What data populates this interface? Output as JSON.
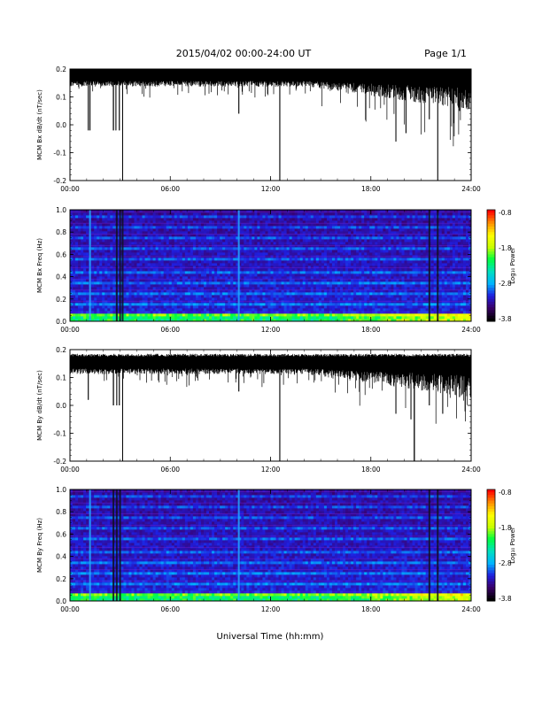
{
  "header": {
    "title": "2015/04/02  00:00-24:00 UT",
    "page": "Page 1/1"
  },
  "x_axis": {
    "label": "Universal Time (hh:mm)",
    "ticks": [
      "00:00",
      "06:00",
      "12:00",
      "18:00",
      "24:00"
    ]
  },
  "colors": {
    "trace": "#000000",
    "colorbar_stops": [
      "#000000",
      "#3a006a",
      "#1f1fe0",
      "#00b4ff",
      "#00e0c0",
      "#00ff40",
      "#c8ff00",
      "#ffff00",
      "#ff9000",
      "#ff0000"
    ]
  },
  "chart_data": [
    {
      "type": "line",
      "ylabel": "MCM Bx dB/dt (nT/sec)",
      "xlim": [
        0,
        24
      ],
      "ylim": [
        -0.2,
        0.2
      ],
      "yticks": [
        "0.2",
        "0.1",
        "0.0",
        "-0.1",
        "-0.2"
      ],
      "grid": false,
      "baseline": 0.165,
      "spikes": [
        {
          "x": 1.1,
          "y": -0.02
        },
        {
          "x": 1.2,
          "y": -0.02
        },
        {
          "x": 2.6,
          "y": -0.02
        },
        {
          "x": 2.75,
          "y": -0.02
        },
        {
          "x": 2.95,
          "y": -0.02
        },
        {
          "x": 3.15,
          "y": -0.2
        },
        {
          "x": 10.1,
          "y": 0.04
        },
        {
          "x": 12.55,
          "y": -0.2
        },
        {
          "x": 19.5,
          "y": -0.06
        },
        {
          "x": 20.1,
          "y": -0.03
        },
        {
          "x": 21.5,
          "y": 0.02
        },
        {
          "x": 22.0,
          "y": -0.2
        },
        {
          "x": 23.3,
          "y": 0.05
        }
      ]
    },
    {
      "type": "heatmap",
      "ylabel": "MCM Bx Freq (Hz)",
      "xlim": [
        0,
        24
      ],
      "ylim": [
        0,
        1.0
      ],
      "yticks": [
        "1.0",
        "0.8",
        "0.6",
        "0.4",
        "0.2",
        "0.0"
      ],
      "colorbar": {
        "label": "Log₁₀ Power",
        "ticks": [
          "-0.8",
          "-1.8",
          "-2.8",
          "-3.8"
        ]
      },
      "vertical_streaks": [
        1.2,
        2.8,
        3.0,
        3.15,
        10.1,
        21.5,
        22.0
      ]
    },
    {
      "type": "line",
      "ylabel": "MCM By dB/dt (nT/sec)",
      "xlim": [
        0,
        24
      ],
      "ylim": [
        -0.2,
        0.2
      ],
      "yticks": [
        "0.2",
        "0.1",
        "0.0",
        "-0.1",
        "-0.2"
      ],
      "grid": false,
      "baseline": 0.14,
      "spikes": [
        {
          "x": 1.1,
          "y": 0.02
        },
        {
          "x": 2.6,
          "y": 0.0
        },
        {
          "x": 2.8,
          "y": 0.0
        },
        {
          "x": 2.95,
          "y": 0.0
        },
        {
          "x": 3.15,
          "y": -0.2
        },
        {
          "x": 10.1,
          "y": 0.05
        },
        {
          "x": 12.55,
          "y": -0.2
        },
        {
          "x": 19.5,
          "y": -0.03
        },
        {
          "x": 20.4,
          "y": -0.05
        },
        {
          "x": 20.6,
          "y": -0.2
        },
        {
          "x": 21.5,
          "y": 0.0
        },
        {
          "x": 22.3,
          "y": -0.03
        },
        {
          "x": 23.3,
          "y": 0.03
        }
      ]
    },
    {
      "type": "heatmap",
      "ylabel": "MCM By Freq (Hz)",
      "xlim": [
        0,
        24
      ],
      "ylim": [
        0,
        1.0
      ],
      "yticks": [
        "1.0",
        "0.8",
        "0.6",
        "0.4",
        "0.2",
        "0.0"
      ],
      "colorbar": {
        "label": "Log₁₀ Power",
        "ticks": [
          "-0.8",
          "-1.8",
          "-2.8",
          "-3.8"
        ]
      },
      "vertical_streaks": [
        1.2,
        2.6,
        2.8,
        3.0,
        10.1,
        21.5,
        22.0
      ]
    }
  ]
}
